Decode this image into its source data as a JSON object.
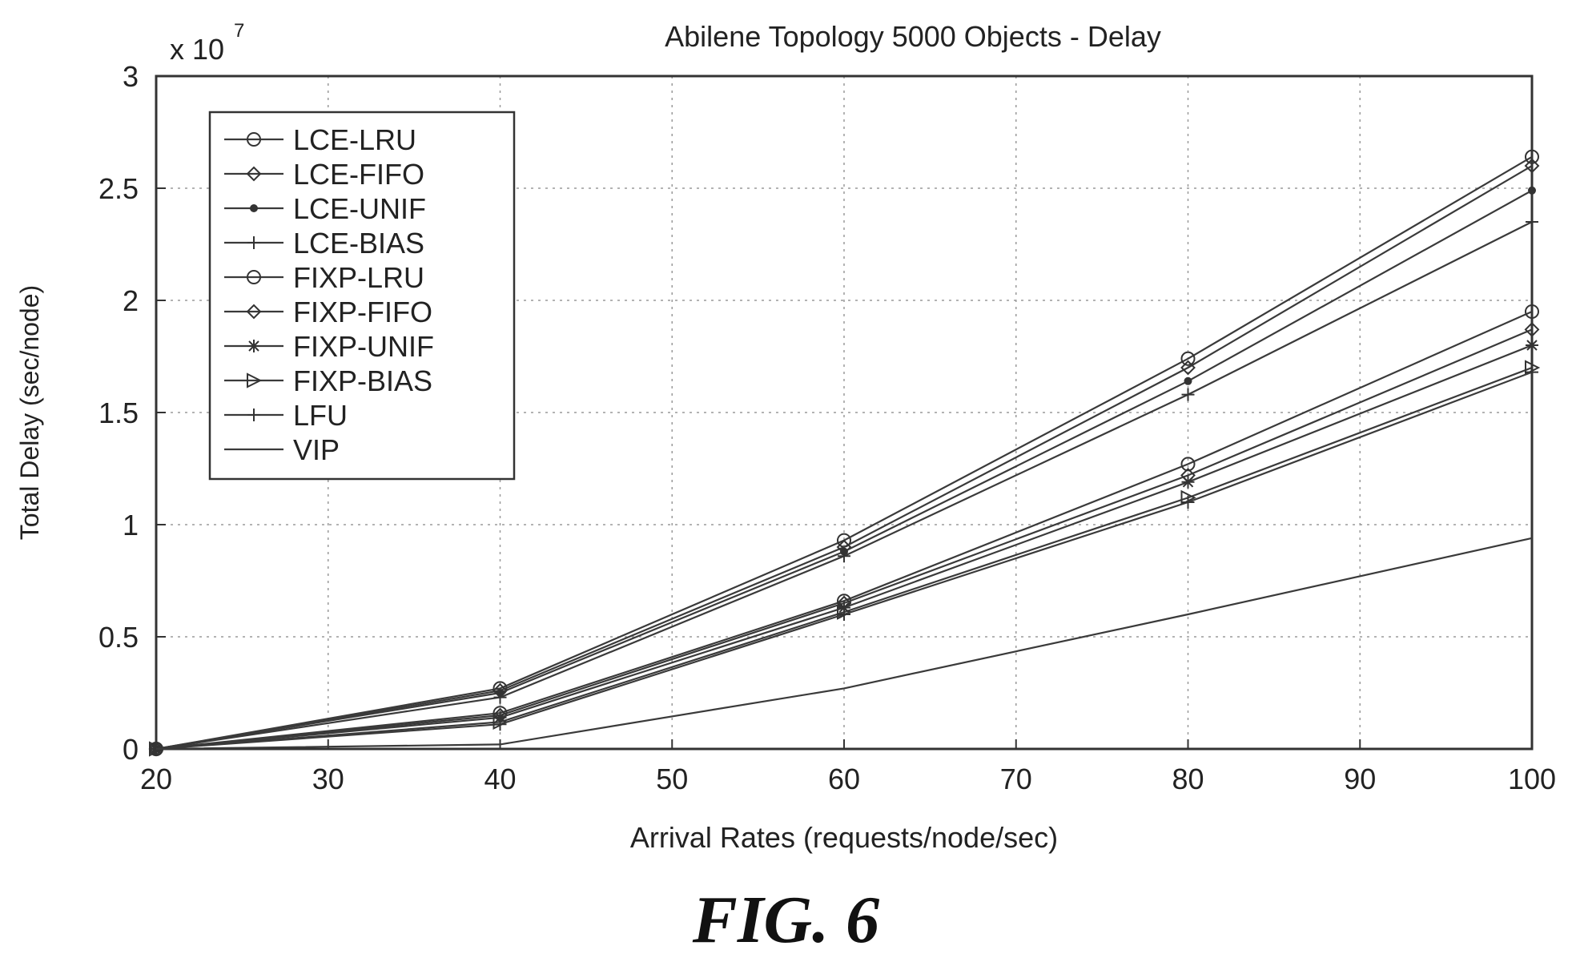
{
  "chart_data": {
    "type": "line",
    "title": "Abilene Topology 5000 Objects - Delay",
    "xlabel": "Arrival Rates (requests/node/sec)",
    "ylabel": "Total Delay (sec/node)",
    "y_multiplier": "x 10",
    "y_exponent": "7",
    "xlim": [
      20,
      100
    ],
    "ylim": [
      0,
      3
    ],
    "x_ticks": [
      "20",
      "30",
      "40",
      "50",
      "60",
      "70",
      "80",
      "90",
      "100"
    ],
    "y_ticks": [
      "0",
      "0.5",
      "1",
      "1.5",
      "2",
      "2.5",
      "3"
    ],
    "grid": true,
    "legend_position": "top-left",
    "x": [
      20,
      40,
      60,
      80,
      100
    ],
    "series": [
      {
        "name": "LCE-LRU",
        "marker": "circle",
        "values": [
          0,
          0.27,
          0.93,
          1.74,
          2.64
        ]
      },
      {
        "name": "LCE-FIFO",
        "marker": "diamond",
        "values": [
          0,
          0.26,
          0.9,
          1.7,
          2.6
        ]
      },
      {
        "name": "LCE-UNIF",
        "marker": "dot",
        "values": [
          0,
          0.25,
          0.88,
          1.64,
          2.49
        ]
      },
      {
        "name": "LCE-BIAS",
        "marker": "plus",
        "values": [
          0,
          0.23,
          0.86,
          1.58,
          2.35
        ]
      },
      {
        "name": "FIXP-LRU",
        "marker": "circle",
        "values": [
          0,
          0.16,
          0.66,
          1.27,
          1.95
        ]
      },
      {
        "name": "FIXP-FIFO",
        "marker": "diamond",
        "values": [
          0,
          0.15,
          0.65,
          1.22,
          1.87
        ]
      },
      {
        "name": "FIXP-UNIF",
        "marker": "star",
        "values": [
          0,
          0.14,
          0.63,
          1.19,
          1.8
        ]
      },
      {
        "name": "FIXP-BIAS",
        "marker": "triangle",
        "values": [
          0,
          0.12,
          0.61,
          1.12,
          1.7
        ]
      },
      {
        "name": "LFU",
        "marker": "plus",
        "values": [
          0,
          0.11,
          0.6,
          1.1,
          1.68
        ]
      },
      {
        "name": "VIP",
        "marker": "none",
        "values": [
          0,
          0.02,
          0.27,
          0.6,
          0.94
        ]
      }
    ]
  },
  "figure_label": "FIG. 6"
}
